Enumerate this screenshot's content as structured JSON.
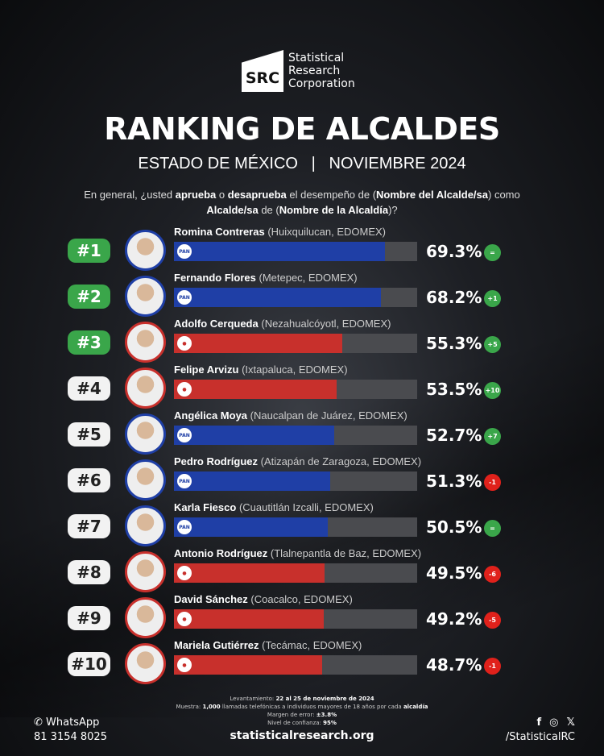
{
  "brand": {
    "mark": "SRC",
    "name_lines": [
      "Statistical",
      "Research",
      "Corporation"
    ]
  },
  "title": "RANKING DE ALCALDES",
  "subtitle": "ESTADO DE MÉXICO   |   NOVIEMBRE 2024",
  "question": {
    "p1": "En general, ¿usted ",
    "b1": "aprueba",
    "p2": " o ",
    "b2": "desaprueba",
    "p3": " el desempeño de (",
    "b3": "Nombre del Alcalde/sa",
    "p4": ") como ",
    "b4": "Alcalde/sa",
    "p5": " de (",
    "b5": "Nombre de la Alcaldía",
    "p6": ")?"
  },
  "colors": {
    "PAN": "#1f3fa6",
    "Morena": "#c8302c",
    "PRI": "#c8302c",
    "up": "#3aa64a",
    "down": "#e0211b",
    "same": "#3aa64a"
  },
  "chart_data": {
    "type": "bar",
    "orientation": "horizontal",
    "xlim": [
      0,
      80
    ],
    "rows": [
      {
        "rank": "#1",
        "name": "Romina Contreras",
        "place": "(Huixquilucan, EDOMEX)",
        "party": "PAN",
        "value": 69.3,
        "label": "69.3%",
        "change": "="
      },
      {
        "rank": "#2",
        "name": "Fernando Flores",
        "place": "(Metepec, EDOMEX)",
        "party": "PAN",
        "value": 68.2,
        "label": "68.2%",
        "change": "+1"
      },
      {
        "rank": "#3",
        "name": "Adolfo Cerqueda",
        "place": "(Nezahualcóyotl, EDOMEX)",
        "party": "Morena",
        "value": 55.3,
        "label": "55.3%",
        "change": "+5"
      },
      {
        "rank": "#4",
        "name": "Felipe Arvizu",
        "place": "(Ixtapaluca, EDOMEX)",
        "party": "Morena",
        "value": 53.5,
        "label": "53.5%",
        "change": "+10"
      },
      {
        "rank": "#5",
        "name": "Angélica Moya",
        "place": "(Naucalpan de Juárez, EDOMEX)",
        "party": "PAN",
        "value": 52.7,
        "label": "52.7%",
        "change": "+7"
      },
      {
        "rank": "#6",
        "name": "Pedro Rodríguez",
        "place": "(Atizapán de Zaragoza, EDOMEX)",
        "party": "PAN",
        "value": 51.3,
        "label": "51.3%",
        "change": "-1"
      },
      {
        "rank": "#7",
        "name": "Karla Fiesco",
        "place": "(Cuautitlán Izcalli, EDOMEX)",
        "party": "PAN",
        "value": 50.5,
        "label": "50.5%",
        "change": "="
      },
      {
        "rank": "#8",
        "name": "Antonio Rodríguez",
        "place": "(Tlalnepantla de Baz, EDOMEX)",
        "party": "PRI",
        "value": 49.5,
        "label": "49.5%",
        "change": "-6"
      },
      {
        "rank": "#9",
        "name": "David Sánchez",
        "place": "(Coacalco, EDOMEX)",
        "party": "PRI",
        "value": 49.2,
        "label": "49.2%",
        "change": "-5"
      },
      {
        "rank": "#10",
        "name": "Mariela Gutiérrez",
        "place": "(Tecámac, EDOMEX)",
        "party": "Morena",
        "value": 48.7,
        "label": "48.7%",
        "change": "-1"
      }
    ]
  },
  "footer": {
    "survey_label": "Levantamiento: ",
    "survey_value": "22 al 25 de noviembre de 2024",
    "sample_label": "Muestra: ",
    "sample_n": "1,000",
    "sample_text": " llamadas telefónicas a individuos mayores de 18 años por cada ",
    "sample_unit": "alcaldía",
    "margin_label": "Margen de error: ",
    "margin_value": "±3.8%",
    "conf_label": "Nivel de confianza: ",
    "conf_value": "95%",
    "website": "statisticalresearch.org",
    "whatsapp_label": "WhatsApp",
    "whatsapp_number": "81 3154 8025",
    "social_handle": "/StatisticalRC",
    "icons": [
      "whatsapp-icon",
      "facebook-icon",
      "instagram-icon",
      "x-icon"
    ]
  }
}
